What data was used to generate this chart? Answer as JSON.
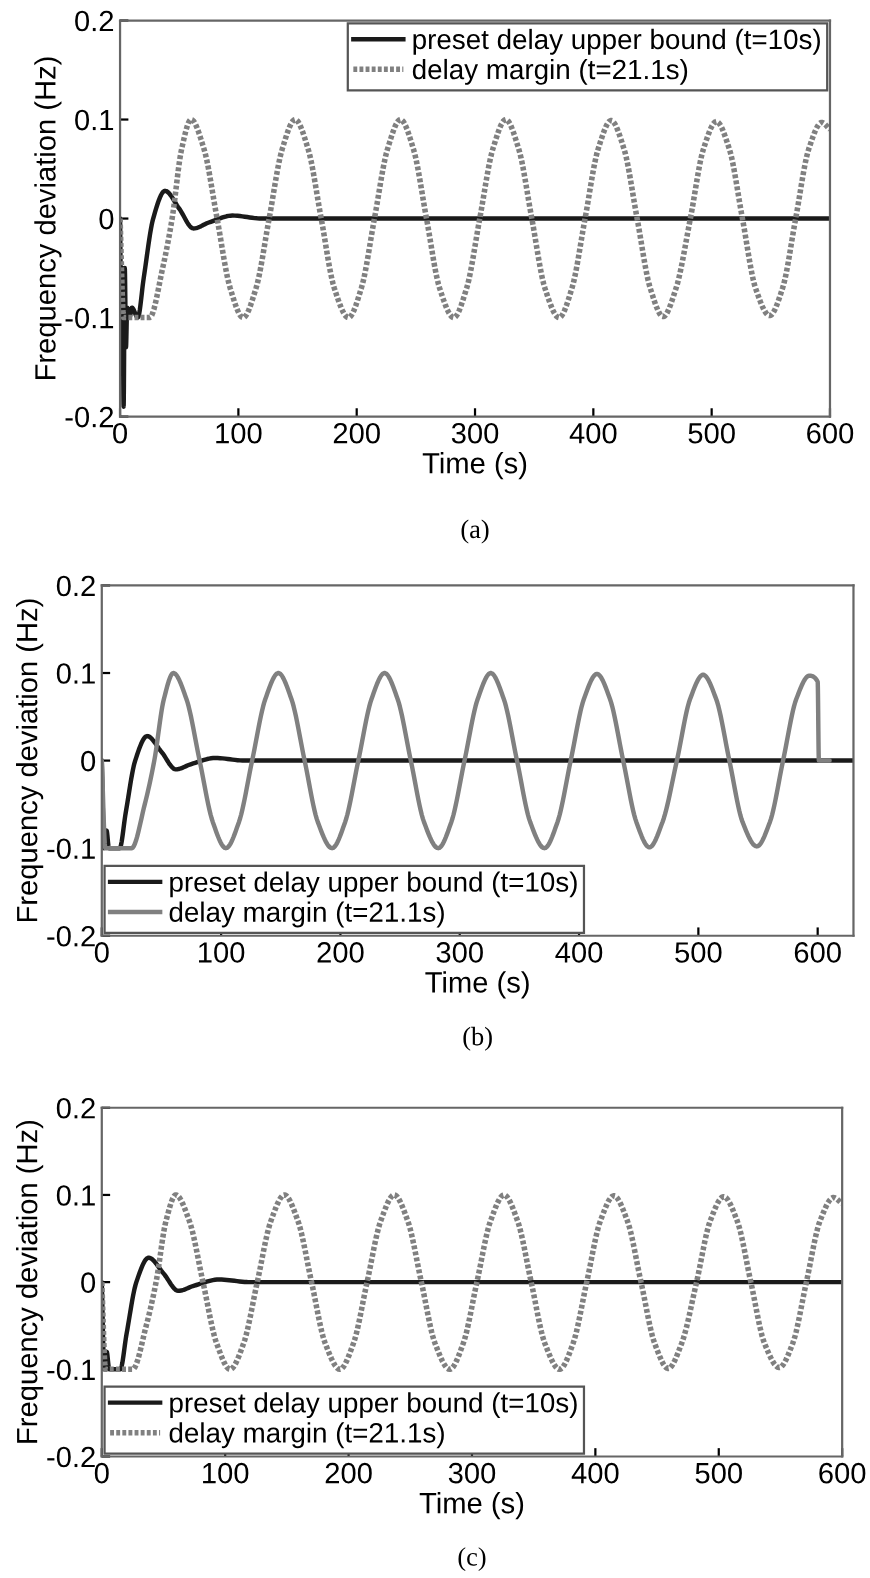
{
  "chart_data": [
    {
      "type": "line",
      "xlabel": "Time (s)",
      "ylabel": "Frequency deviation (Hz)",
      "xlim": [
        0,
        600
      ],
      "ylim": [
        -0.2,
        0.2
      ],
      "xticks": [
        0,
        100,
        200,
        300,
        400,
        500,
        600
      ],
      "yticks": [
        -0.2,
        -0.1,
        0,
        0.1,
        0.2
      ],
      "grid": false,
      "legend": "top right",
      "annotations": [
        "(a)"
      ],
      "series": [
        {
          "name": "preset delay upper bound (t=10s)",
          "color": "#1a1a1a",
          "line_style": "solid",
          "x": [
            0,
            1,
            2,
            3,
            4,
            5,
            6,
            8,
            10,
            15,
            20,
            28,
            38,
            50,
            62,
            75,
            95,
            120,
            600
          ],
          "values": [
            0,
            -0.1,
            -0.05,
            -0.19,
            -0.05,
            -0.13,
            -0.09,
            -0.1,
            -0.09,
            -0.1,
            -0.06,
            0,
            0.028,
            0.01,
            -0.01,
            -0.004,
            0.003,
            0,
            0
          ]
        },
        {
          "name": "delay margin (t=21.1s)",
          "color": "#808080",
          "line_style": "dotted",
          "x": [
            0,
            3,
            10,
            25,
            36,
            44,
            52,
            60,
            71,
            82,
            93,
            104,
            115,
            126,
            137,
            148,
            159,
            170,
            181,
            193,
            204,
            215,
            226,
            237,
            248,
            259,
            270,
            282,
            293,
            304,
            315,
            326,
            337,
            348,
            359,
            371,
            382,
            393,
            404,
            415,
            426,
            437,
            448,
            459,
            470,
            482,
            493,
            504,
            515,
            526,
            537,
            549,
            560,
            571,
            582,
            593,
            600
          ],
          "values": [
            0,
            -0.1,
            -0.1,
            -0.1,
            -0.05,
            0,
            0.07,
            0.1,
            0.07,
            0,
            -0.07,
            -0.1,
            -0.07,
            0,
            0.07,
            0.1,
            0.07,
            0,
            -0.07,
            -0.1,
            -0.07,
            0,
            0.07,
            0.1,
            0.07,
            0,
            -0.07,
            -0.1,
            -0.07,
            0,
            0.07,
            0.1,
            0.07,
            0,
            -0.07,
            -0.1,
            -0.07,
            0,
            0.07,
            0.099,
            0.07,
            0,
            -0.07,
            -0.099,
            -0.07,
            0,
            0.07,
            0.098,
            0.07,
            0,
            -0.07,
            -0.098,
            -0.07,
            0,
            0.07,
            0.097,
            0.09
          ]
        }
      ]
    },
    {
      "type": "line",
      "xlabel": "Time (s)",
      "ylabel": "Frequency deviation (Hz)",
      "xlim": [
        0,
        630
      ],
      "ylim": [
        -0.2,
        0.2
      ],
      "xticks": [
        0,
        100,
        200,
        300,
        400,
        500,
        600
      ],
      "yticks": [
        -0.2,
        -0.1,
        0,
        0.1,
        0.2
      ],
      "grid": false,
      "legend": "bottom left",
      "annotations": [
        "(b)"
      ],
      "series": [
        {
          "name": "preset delay upper bound (t=10s)",
          "color": "#1a1a1a",
          "line_style": "solid",
          "x": [
            0,
            2,
            4,
            6,
            15,
            20,
            28,
            38,
            50,
            62,
            75,
            95,
            120,
            630
          ],
          "values": [
            0,
            -0.1,
            -0.08,
            -0.1,
            -0.1,
            -0.06,
            0,
            0.028,
            0.01,
            -0.01,
            -0.004,
            0.003,
            0,
            0
          ]
        },
        {
          "name": "delay margin (t=21.1s)",
          "color": "#808080",
          "line_style": "solid",
          "x": [
            0,
            3,
            10,
            25,
            36,
            44,
            52,
            60,
            71,
            82,
            93,
            104,
            115,
            126,
            137,
            148,
            159,
            170,
            181,
            193,
            204,
            215,
            226,
            237,
            248,
            259,
            270,
            282,
            293,
            304,
            315,
            326,
            337,
            348,
            359,
            371,
            382,
            393,
            404,
            415,
            426,
            437,
            448,
            459,
            470,
            482,
            493,
            504,
            515,
            526,
            537,
            549,
            560,
            571,
            582,
            593,
            600,
            601,
            610
          ],
          "values": [
            0,
            -0.1,
            -0.1,
            -0.1,
            -0.05,
            0,
            0.07,
            0.1,
            0.07,
            0,
            -0.07,
            -0.1,
            -0.07,
            0,
            0.07,
            0.1,
            0.07,
            0,
            -0.07,
            -0.1,
            -0.07,
            0,
            0.07,
            0.1,
            0.07,
            0,
            -0.07,
            -0.1,
            -0.07,
            0,
            0.07,
            0.1,
            0.07,
            0,
            -0.07,
            -0.1,
            -0.07,
            0,
            0.07,
            0.099,
            0.07,
            0,
            -0.07,
            -0.099,
            -0.07,
            0,
            0.07,
            0.098,
            0.07,
            0,
            -0.07,
            -0.098,
            -0.07,
            0,
            0.07,
            0.097,
            0.09,
            0,
            0
          ]
        }
      ]
    },
    {
      "type": "line",
      "xlabel": "Time (s)",
      "ylabel": "Frequency deviation (Hz)",
      "xlim": [
        0,
        600
      ],
      "ylim": [
        -0.2,
        0.2
      ],
      "xticks": [
        0,
        100,
        200,
        300,
        400,
        500,
        600
      ],
      "yticks": [
        -0.2,
        -0.1,
        0,
        0.1,
        0.2
      ],
      "grid": false,
      "legend": "bottom left",
      "annotations": [
        "(c)"
      ],
      "series": [
        {
          "name": "preset delay upper bound (t=10s)",
          "color": "#1a1a1a",
          "line_style": "solid",
          "x": [
            0,
            2,
            4,
            6,
            15,
            20,
            28,
            38,
            50,
            62,
            75,
            95,
            120,
            600
          ],
          "values": [
            0,
            -0.1,
            -0.08,
            -0.1,
            -0.1,
            -0.06,
            0,
            0.028,
            0.01,
            -0.01,
            -0.004,
            0.003,
            0,
            0
          ]
        },
        {
          "name": "delay margin (t=21.1s)",
          "color": "#808080",
          "line_style": "dotted",
          "x": [
            0,
            3,
            10,
            25,
            36,
            44,
            52,
            60,
            71,
            82,
            93,
            104,
            115,
            126,
            137,
            148,
            159,
            170,
            181,
            193,
            204,
            215,
            226,
            237,
            248,
            259,
            270,
            282,
            293,
            304,
            315,
            326,
            337,
            348,
            359,
            371,
            382,
            393,
            404,
            415,
            426,
            437,
            448,
            459,
            470,
            482,
            493,
            504,
            515,
            526,
            537,
            549,
            560,
            571,
            582,
            593,
            600
          ],
          "values": [
            0,
            -0.1,
            -0.1,
            -0.1,
            -0.05,
            0,
            0.07,
            0.1,
            0.07,
            0,
            -0.07,
            -0.1,
            -0.07,
            0,
            0.07,
            0.1,
            0.07,
            0,
            -0.07,
            -0.1,
            -0.07,
            0,
            0.07,
            0.1,
            0.07,
            0,
            -0.07,
            -0.1,
            -0.07,
            0,
            0.07,
            0.1,
            0.07,
            0,
            -0.07,
            -0.1,
            -0.07,
            0,
            0.07,
            0.099,
            0.07,
            0,
            -0.07,
            -0.099,
            -0.07,
            0,
            0.07,
            0.098,
            0.07,
            0,
            -0.07,
            -0.098,
            -0.07,
            0,
            0.07,
            0.097,
            0.09
          ]
        }
      ]
    }
  ]
}
